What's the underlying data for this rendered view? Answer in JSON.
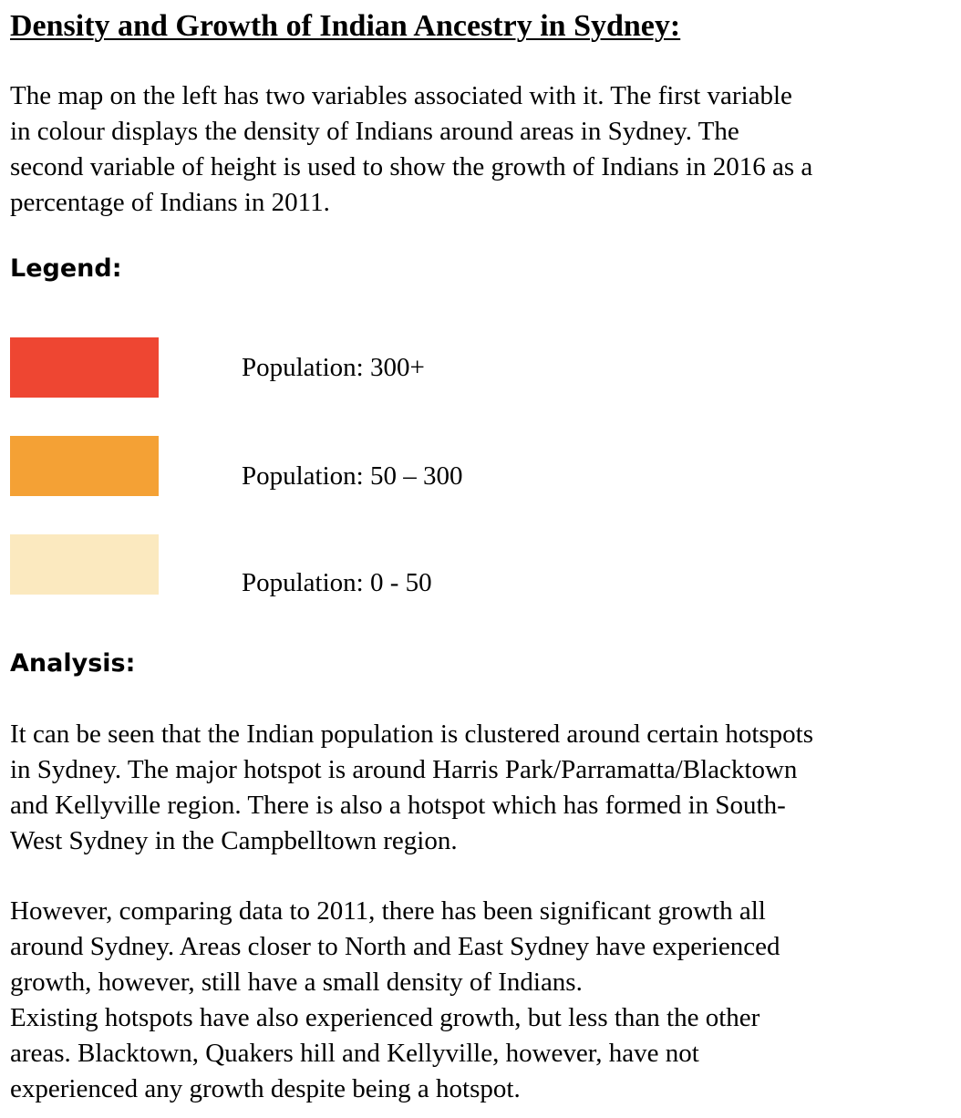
{
  "title": "Density and Growth of Indian Ancestry in Sydney:",
  "intro": {
    "lines": [
      "The map on the left has two variables associated with it. The first variable",
      "in colour displays the density of Indians around areas in Sydney. The",
      "second variable of height is used to show the growth of Indians in 2016 as a",
      "percentage of Indians in 2011."
    ]
  },
  "legend": {
    "heading": "Legend:",
    "items": [
      {
        "label": "Population: 300+",
        "color": "#ee4632"
      },
      {
        "label": "Population: 50 – 300",
        "color": "#f4a135"
      },
      {
        "label": "Population: 0 - 50",
        "color": "#fbe9bf"
      }
    ]
  },
  "analysis": {
    "heading": "Analysis:",
    "paragraph1": [
      "It can be seen that the Indian population is clustered around certain hotspots",
      "in Sydney. The major hotspot is around Harris Park/Parramatta/Blacktown",
      "and Kellyville region. There is also a hotspot which has formed in South-",
      "West Sydney in the Campbelltown region."
    ],
    "paragraph2": [
      "However, comparing data to 2011, there has been significant growth all",
      "around Sydney. Areas closer to North and East Sydney have experienced",
      "growth, however, still have a small density of Indians.",
      "Existing hotspots have also experienced growth, but less than the other",
      "areas. Blacktown, Quakers hill and Kellyville, however, have not",
      "experienced any growth despite being a hotspot."
    ]
  }
}
